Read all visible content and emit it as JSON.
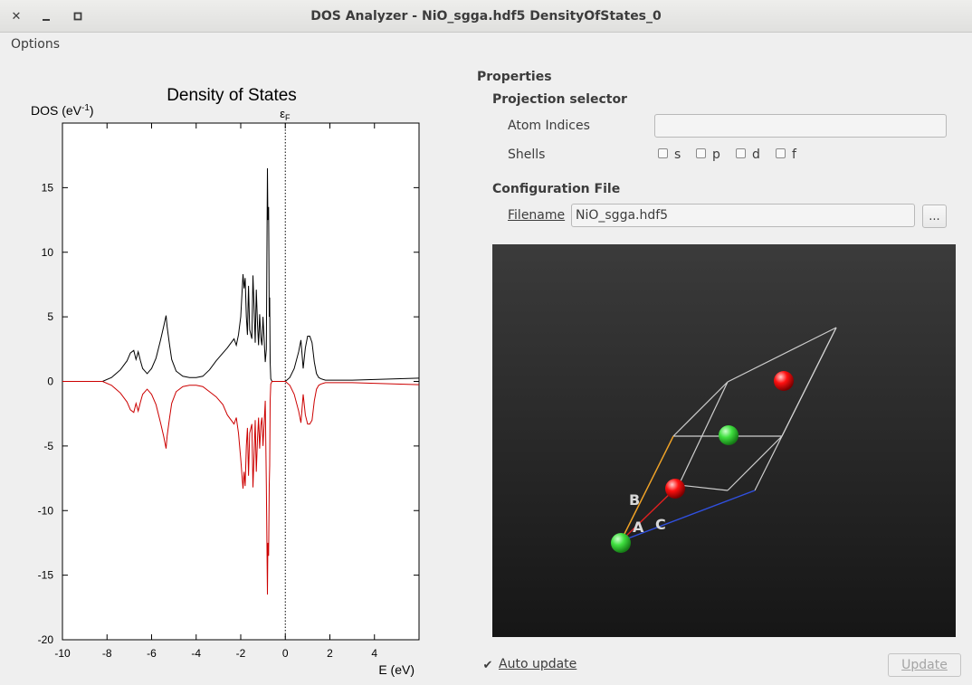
{
  "window": {
    "title": "DOS Analyzer - NiO_sgga.hdf5 DensityOfStates_0",
    "close_glyph": "✕",
    "minimize_glyph": "—",
    "maximize_glyph": "▫"
  },
  "menu": {
    "items": [
      "Options"
    ]
  },
  "chart_data": {
    "type": "line",
    "title": "Density of States",
    "ylabel": "DOS (eV",
    "ylabel_sup": "-1",
    "ylabel_close": ")",
    "xlabel": "E (eV)",
    "fermi_label": "ε",
    "fermi_sub": "F",
    "xlim": [
      -10,
      6
    ],
    "ylim": [
      -20,
      20
    ],
    "xticks": [
      -10,
      -8,
      -6,
      -4,
      -2,
      0,
      2,
      4
    ],
    "yticks": [
      -20,
      -15,
      -10,
      -5,
      0,
      5,
      10,
      15
    ],
    "fermi_level": 0,
    "grid": false,
    "colors": {
      "spin_up": "#000000",
      "spin_down": "#cc0000",
      "fermi": "#000000"
    },
    "series": [
      {
        "x": [
          -10,
          -8.2,
          -7.8,
          -7.4,
          -7.1,
          -6.95,
          -6.8,
          -6.7,
          -6.6,
          -6.5,
          -6.4,
          -6.2,
          -6.0,
          -5.8,
          -5.6,
          -5.45,
          -5.35,
          -5.3,
          -5.2,
          -5.1,
          -4.9,
          -4.6,
          -4.3,
          -4.0,
          -3.7,
          -3.4,
          -3.1,
          -2.8,
          -2.6,
          -2.3,
          -2.2,
          -2.1,
          -2.0,
          -1.9,
          -1.85,
          -1.8,
          -1.75,
          -1.7,
          -1.65,
          -1.6,
          -1.5,
          -1.45,
          -1.4,
          -1.35,
          -1.3,
          -1.25,
          -1.2,
          -1.15,
          -1.1,
          -1.05,
          -1.0,
          -0.95,
          -0.9,
          -0.85,
          -0.8,
          -0.78,
          -0.75,
          -0.72,
          -0.7,
          -0.68,
          -0.65,
          -0.6,
          -0.5,
          -0.4,
          -0.3,
          -0.2,
          -0.1,
          0.0,
          0.2,
          0.4,
          0.6,
          0.7,
          0.8,
          0.9,
          1.0,
          1.1,
          1.2,
          1.3,
          1.4,
          1.5,
          1.6,
          1.7,
          1.8,
          2.0,
          2.5,
          3.0,
          4.0,
          5.0,
          6.0
        ],
        "values": [
          0,
          0,
          0.3,
          0.9,
          1.6,
          2.2,
          2.4,
          1.7,
          2.3,
          1.6,
          1.0,
          0.6,
          1.0,
          1.8,
          3.2,
          4.3,
          5.1,
          4.2,
          2.9,
          1.7,
          0.8,
          0.4,
          0.3,
          0.3,
          0.4,
          0.9,
          1.6,
          2.2,
          2.6,
          3.3,
          2.8,
          3.6,
          5.0,
          8.3,
          7.2,
          8.0,
          5.0,
          3.6,
          7.4,
          4.0,
          3.3,
          8.2,
          5.6,
          3.0,
          7.1,
          4.5,
          2.8,
          5.2,
          3.4,
          2.8,
          5.0,
          3.2,
          1.5,
          2.5,
          16.5,
          12.5,
          13.5,
          5.0,
          6.5,
          1.5,
          0.2,
          0,
          0,
          0,
          0,
          0,
          0,
          0,
          0.3,
          1.0,
          2.3,
          3.2,
          1.0,
          2.6,
          3.5,
          3.5,
          3.0,
          1.5,
          0.6,
          0.3,
          0.2,
          0.15,
          0.1,
          0.1,
          0.1,
          0.1,
          0.15,
          0.2,
          0.25
        ]
      },
      {
        "x": [
          -10,
          -8.2,
          -7.8,
          -7.4,
          -7.1,
          -6.95,
          -6.8,
          -6.7,
          -6.6,
          -6.5,
          -6.4,
          -6.2,
          -6.0,
          -5.8,
          -5.6,
          -5.45,
          -5.35,
          -5.3,
          -5.2,
          -5.1,
          -4.9,
          -4.6,
          -4.3,
          -4.0,
          -3.7,
          -3.4,
          -3.1,
          -2.8,
          -2.6,
          -2.3,
          -2.2,
          -2.1,
          -2.0,
          -1.9,
          -1.85,
          -1.8,
          -1.75,
          -1.7,
          -1.65,
          -1.6,
          -1.5,
          -1.45,
          -1.4,
          -1.35,
          -1.3,
          -1.25,
          -1.2,
          -1.15,
          -1.1,
          -1.05,
          -1.0,
          -0.95,
          -0.9,
          -0.85,
          -0.8,
          -0.78,
          -0.75,
          -0.72,
          -0.7,
          -0.68,
          -0.65,
          -0.6,
          -0.5,
          -0.4,
          -0.3,
          -0.2,
          -0.1,
          0.0,
          0.2,
          0.4,
          0.6,
          0.7,
          0.8,
          0.9,
          1.0,
          1.1,
          1.2,
          1.3,
          1.4,
          1.5,
          1.6,
          1.7,
          1.8,
          2.0,
          2.5,
          3.0,
          4.0,
          5.0,
          6.0
        ],
        "values": [
          0,
          0,
          -0.3,
          -0.9,
          -1.6,
          -2.2,
          -2.4,
          -1.7,
          -2.3,
          -1.6,
          -1.0,
          -0.6,
          -1.0,
          -1.8,
          -3.2,
          -4.3,
          -5.2,
          -4.2,
          -2.9,
          -1.7,
          -0.8,
          -0.4,
          -0.3,
          -0.3,
          -0.4,
          -0.8,
          -1.2,
          -1.8,
          -2.6,
          -3.3,
          -2.8,
          -4.0,
          -6.0,
          -8.3,
          -7.0,
          -8.1,
          -5.0,
          -3.6,
          -7.3,
          -4.0,
          -3.3,
          -8.2,
          -5.6,
          -3.0,
          -7.0,
          -4.5,
          -2.8,
          -5.2,
          -3.4,
          -2.8,
          -5.0,
          -3.2,
          -1.5,
          -8.0,
          -16.5,
          -12.5,
          -13.5,
          -8.0,
          -6.5,
          -1.5,
          -0.2,
          0,
          0,
          0,
          0,
          0,
          0,
          0,
          -0.3,
          -1.0,
          -2.3,
          -3.2,
          -1.0,
          -2.6,
          -3.3,
          -3.3,
          -3.0,
          -1.5,
          -0.6,
          -0.3,
          -0.2,
          -0.15,
          -0.1,
          -0.1,
          -0.1,
          -0.1,
          -0.15,
          -0.2,
          -0.25
        ]
      }
    ]
  },
  "properties": {
    "title": "Properties",
    "projection": {
      "title": "Projection selector",
      "atom_indices_label": "Atom Indices",
      "atom_indices_value": "",
      "shells_label": "Shells",
      "shells": [
        {
          "label": "s",
          "checked": false
        },
        {
          "label": "p",
          "checked": false
        },
        {
          "label": "d",
          "checked": false
        },
        {
          "label": "f",
          "checked": false
        }
      ]
    },
    "config": {
      "title": "Configuration File",
      "filename_label": "Filename",
      "filename_value": "NiO_sgga.hdf5",
      "browse_label": "..."
    }
  },
  "viewer": {
    "axis_labels": [
      "A",
      "B",
      "C"
    ],
    "axis_colors": {
      "a": "#e02020",
      "b": "#f0a020",
      "c": "#3050e0"
    },
    "atom_colors": {
      "ni": "#40e040",
      "o": "#ff1010"
    }
  },
  "footer": {
    "auto_update_label": "Auto update",
    "auto_update_checked": true,
    "update_label": "Update",
    "check_glyph": "✔"
  }
}
